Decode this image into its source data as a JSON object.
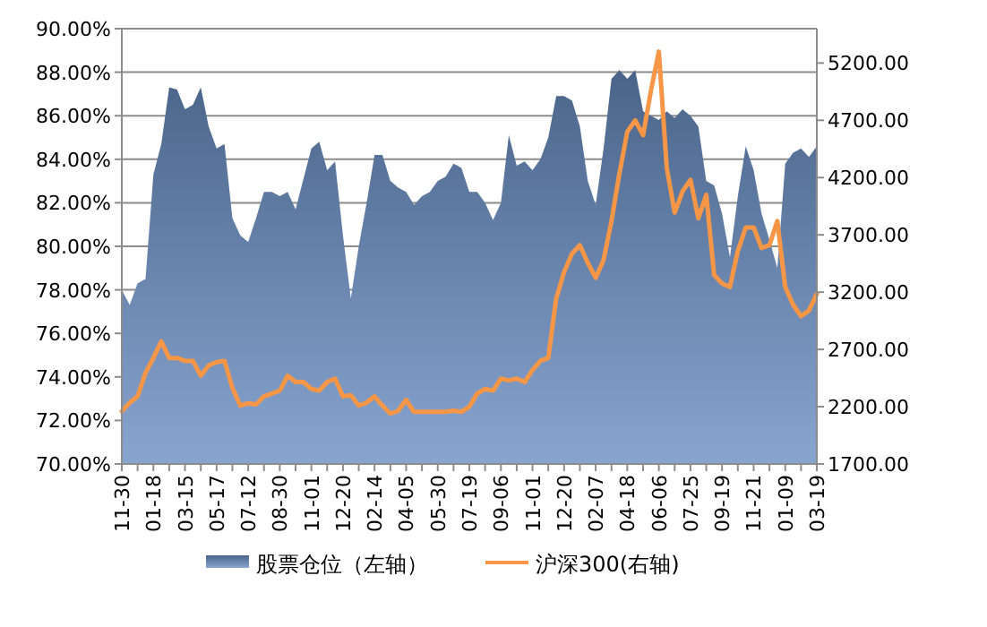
{
  "chart_data": {
    "type": "area",
    "categories": [
      "11-30",
      null,
      null,
      null,
      "01-18",
      null,
      null,
      null,
      "03-15",
      null,
      null,
      null,
      "05-17",
      null,
      null,
      null,
      "07-12",
      null,
      null,
      null,
      "08-30",
      null,
      null,
      null,
      "11-01",
      null,
      null,
      null,
      "12-20",
      null,
      null,
      null,
      "02-14",
      null,
      null,
      null,
      "04-05",
      null,
      null,
      null,
      "05-30",
      null,
      null,
      null,
      "07-19",
      null,
      null,
      null,
      "09-06",
      null,
      null,
      null,
      "11-01",
      null,
      null,
      null,
      "12-20",
      null,
      null,
      null,
      "02-07",
      null,
      null,
      null,
      "04-18",
      null,
      null,
      null,
      "06-06",
      null,
      null,
      null,
      "07-25",
      null,
      null,
      null,
      "09-19",
      null,
      null,
      null,
      "11-21",
      null,
      null,
      null,
      "01-09",
      null,
      null,
      null,
      "03-19"
    ],
    "series": [
      {
        "name": "股票仓位（左轴）",
        "color": "#6a8fc4",
        "values": [
          78.0,
          77.3,
          78.3,
          78.5,
          83.3,
          84.7,
          87.3,
          87.2,
          86.3,
          86.5,
          87.3,
          85.5,
          84.5,
          84.7,
          81.3,
          80.5,
          80.2,
          81.3,
          82.5,
          82.5,
          82.3,
          82.5,
          81.7,
          83.1,
          84.5,
          84.8,
          83.5,
          83.9,
          80.5,
          77.6,
          80.0,
          82.0,
          84.2,
          84.2,
          83.0,
          82.7,
          82.5,
          81.9,
          82.3,
          82.5,
          83.0,
          83.2,
          83.8,
          83.6,
          82.5,
          82.5,
          82.0,
          81.2,
          82.0,
          85.1,
          83.7,
          83.9,
          83.5,
          84.0,
          85.0,
          86.9,
          86.9,
          86.7,
          85.5,
          83.0,
          81.9,
          84.5,
          87.7,
          88.1,
          87.7,
          88.1,
          86.2,
          86.0,
          85.8,
          86.2,
          85.9,
          86.3,
          86.0,
          85.5,
          83.0,
          82.8,
          81.5,
          79.5,
          82.3,
          84.6,
          83.5,
          81.5,
          80.3,
          79.0,
          83.8,
          84.3,
          84.5,
          84.1,
          84.6
        ]
      },
      {
        "name": "沪深300(右轴)",
        "type": "line",
        "axis": "y2",
        "color": "#f79646",
        "values": [
          2160,
          2235,
          2290,
          2495,
          2625,
          2770,
          2625,
          2625,
          2600,
          2600,
          2470,
          2560,
          2590,
          2600,
          2365,
          2210,
          2230,
          2220,
          2290,
          2315,
          2340,
          2470,
          2415,
          2415,
          2355,
          2340,
          2415,
          2445,
          2290,
          2300,
          2210,
          2235,
          2290,
          2210,
          2140,
          2165,
          2260,
          2155,
          2155,
          2155,
          2155,
          2155,
          2165,
          2155,
          2200,
          2315,
          2355,
          2340,
          2445,
          2430,
          2445,
          2415,
          2520,
          2600,
          2625,
          3145,
          3375,
          3535,
          3610,
          3455,
          3325,
          3480,
          3820,
          4235,
          4600,
          4700,
          4570,
          4960,
          5300,
          4285,
          3895,
          4080,
          4180,
          3845,
          4050,
          3350,
          3275,
          3245,
          3560,
          3765,
          3765,
          3585,
          3610,
          3820,
          3245,
          3090,
          2990,
          3040,
          3185
        ]
      }
    ],
    "ylim": [
      70,
      90
    ],
    "yticks": [
      {
        "value": 70,
        "label": "70.00%"
      },
      {
        "value": 72,
        "label": "72.00%"
      },
      {
        "value": 74,
        "label": "74.00%"
      },
      {
        "value": 76,
        "label": "76.00%"
      },
      {
        "value": 78,
        "label": "78.00%"
      },
      {
        "value": 80,
        "label": "80.00%"
      },
      {
        "value": 82,
        "label": "82.00%"
      },
      {
        "value": 84,
        "label": "84.00%"
      },
      {
        "value": 86,
        "label": "86.00%"
      },
      {
        "value": 88,
        "label": "88.00%"
      },
      {
        "value": 90,
        "label": "90.00%"
      }
    ],
    "y2lim": [
      1700,
      5500
    ],
    "y2ticks": [
      {
        "value": 1700,
        "label": "1700.00"
      },
      {
        "value": 2200,
        "label": "2200.00"
      },
      {
        "value": 2700,
        "label": "2700.00"
      },
      {
        "value": 3200,
        "label": "3200.00"
      },
      {
        "value": 3700,
        "label": "3700.00"
      },
      {
        "value": 4200,
        "label": "4200.00"
      },
      {
        "value": 4700,
        "label": "4700.00"
      },
      {
        "value": 5200,
        "label": "5200.00"
      }
    ],
    "grid": "y",
    "legend": "bottom"
  }
}
